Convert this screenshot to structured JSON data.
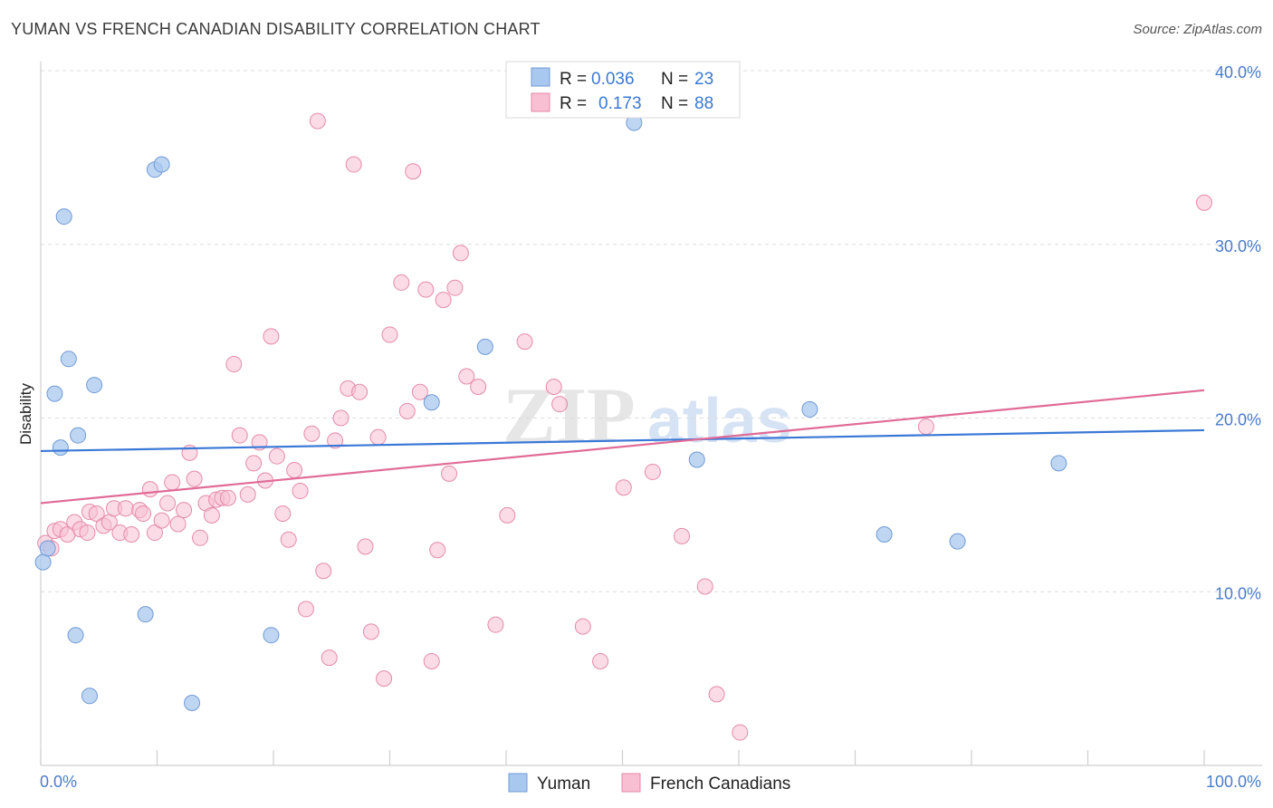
{
  "title": "YUMAN VS FRENCH CANADIAN DISABILITY CORRELATION CHART",
  "source": "Source: ZipAtlas.com",
  "watermark": {
    "zip": "ZIP",
    "atlas": "atlas"
  },
  "chart_data": {
    "type": "scatter",
    "xlabel": "",
    "ylabel": "Disability",
    "xlim": [
      0,
      100
    ],
    "ylim": [
      0,
      40
    ],
    "x_tick_labels": [
      "0.0%",
      "100.0%"
    ],
    "y_ticks": [
      10,
      20,
      30,
      40
    ],
    "y_tick_labels": [
      "10.0%",
      "20.0%",
      "30.0%",
      "40.0%"
    ],
    "grid": true,
    "legend_position": "top-center",
    "series": [
      {
        "name": "Yuman",
        "color": "#a9c8ef",
        "edge": "#6f9ad6",
        "line_color": "#3a78d6",
        "stats": {
          "r_label": "R =",
          "r": "0.036",
          "n_label": "N =",
          "n": "23"
        },
        "trend": {
          "x0": 0,
          "y0": 18.1,
          "x1": 100,
          "y1": 19.3
        },
        "points": [
          [
            0.2,
            11.7
          ],
          [
            0.6,
            12.5
          ],
          [
            1.2,
            21.4
          ],
          [
            1.7,
            18.3
          ],
          [
            2.0,
            31.6
          ],
          [
            2.4,
            23.4
          ],
          [
            3.0,
            7.5
          ],
          [
            3.2,
            19.0
          ],
          [
            4.2,
            4.0
          ],
          [
            4.6,
            21.9
          ],
          [
            9.0,
            8.7
          ],
          [
            9.8,
            34.3
          ],
          [
            10.4,
            34.6
          ],
          [
            13.0,
            3.6
          ],
          [
            19.8,
            7.5
          ],
          [
            33.6,
            20.9
          ],
          [
            38.2,
            24.1
          ],
          [
            51.0,
            37.0
          ],
          [
            56.4,
            17.6
          ],
          [
            66.1,
            20.5
          ],
          [
            72.5,
            13.3
          ],
          [
            78.8,
            12.9
          ],
          [
            87.5,
            17.4
          ]
        ]
      },
      {
        "name": "French Canadians",
        "color": "#f7bfd1",
        "edge": "#e58aaa",
        "line_color": "#e06b96",
        "stats": {
          "r_label": "R =",
          "r": "0.173",
          "n_label": "N =",
          "n": "88"
        },
        "trend": {
          "x0": 0,
          "y0": 15.1,
          "x1": 100,
          "y1": 21.6
        },
        "points": [
          [
            0.4,
            12.8
          ],
          [
            0.9,
            12.5
          ],
          [
            1.2,
            13.5
          ],
          [
            1.7,
            13.6
          ],
          [
            2.3,
            13.3
          ],
          [
            2.9,
            14.0
          ],
          [
            3.4,
            13.6
          ],
          [
            4.0,
            13.4
          ],
          [
            4.2,
            14.6
          ],
          [
            4.8,
            14.5
          ],
          [
            5.4,
            13.8
          ],
          [
            5.9,
            14.0
          ],
          [
            6.3,
            14.8
          ],
          [
            6.8,
            13.4
          ],
          [
            7.3,
            14.8
          ],
          [
            7.8,
            13.3
          ],
          [
            8.5,
            14.7
          ],
          [
            8.8,
            14.5
          ],
          [
            9.4,
            15.9
          ],
          [
            9.8,
            13.4
          ],
          [
            10.4,
            14.1
          ],
          [
            10.9,
            15.1
          ],
          [
            11.3,
            16.3
          ],
          [
            11.8,
            13.9
          ],
          [
            12.3,
            14.7
          ],
          [
            12.8,
            18.0
          ],
          [
            13.2,
            16.5
          ],
          [
            13.7,
            13.1
          ],
          [
            14.2,
            15.1
          ],
          [
            14.7,
            14.4
          ],
          [
            15.1,
            15.3
          ],
          [
            15.6,
            15.4
          ],
          [
            16.1,
            15.4
          ],
          [
            16.6,
            23.1
          ],
          [
            17.1,
            19.0
          ],
          [
            17.8,
            15.6
          ],
          [
            18.3,
            17.4
          ],
          [
            18.8,
            18.6
          ],
          [
            19.3,
            16.4
          ],
          [
            19.8,
            24.7
          ],
          [
            20.3,
            17.8
          ],
          [
            20.8,
            14.5
          ],
          [
            21.3,
            13.0
          ],
          [
            21.8,
            17.0
          ],
          [
            22.3,
            15.8
          ],
          [
            22.8,
            9.0
          ],
          [
            23.3,
            19.1
          ],
          [
            23.8,
            37.1
          ],
          [
            24.3,
            11.2
          ],
          [
            24.8,
            6.2
          ],
          [
            25.3,
            18.7
          ],
          [
            25.8,
            20.0
          ],
          [
            26.4,
            21.7
          ],
          [
            26.9,
            34.6
          ],
          [
            27.4,
            21.5
          ],
          [
            27.9,
            12.6
          ],
          [
            28.4,
            7.7
          ],
          [
            29.0,
            18.9
          ],
          [
            29.5,
            5.0
          ],
          [
            30.0,
            24.8
          ],
          [
            31.0,
            27.8
          ],
          [
            31.5,
            20.4
          ],
          [
            32.0,
            34.2
          ],
          [
            32.6,
            21.5
          ],
          [
            33.1,
            27.4
          ],
          [
            33.6,
            6.0
          ],
          [
            34.1,
            12.4
          ],
          [
            34.6,
            26.8
          ],
          [
            35.1,
            16.8
          ],
          [
            35.6,
            27.5
          ],
          [
            36.1,
            29.5
          ],
          [
            36.6,
            22.4
          ],
          [
            37.6,
            21.8
          ],
          [
            39.1,
            8.1
          ],
          [
            40.1,
            14.4
          ],
          [
            41.6,
            24.4
          ],
          [
            44.1,
            21.8
          ],
          [
            44.6,
            20.8
          ],
          [
            46.6,
            8.0
          ],
          [
            48.1,
            6.0
          ],
          [
            50.1,
            16.0
          ],
          [
            52.6,
            16.9
          ],
          [
            55.1,
            13.2
          ],
          [
            57.1,
            10.3
          ],
          [
            58.1,
            4.1
          ],
          [
            60.1,
            1.9
          ],
          [
            76.1,
            19.5
          ],
          [
            100.0,
            32.4
          ]
        ]
      }
    ]
  }
}
